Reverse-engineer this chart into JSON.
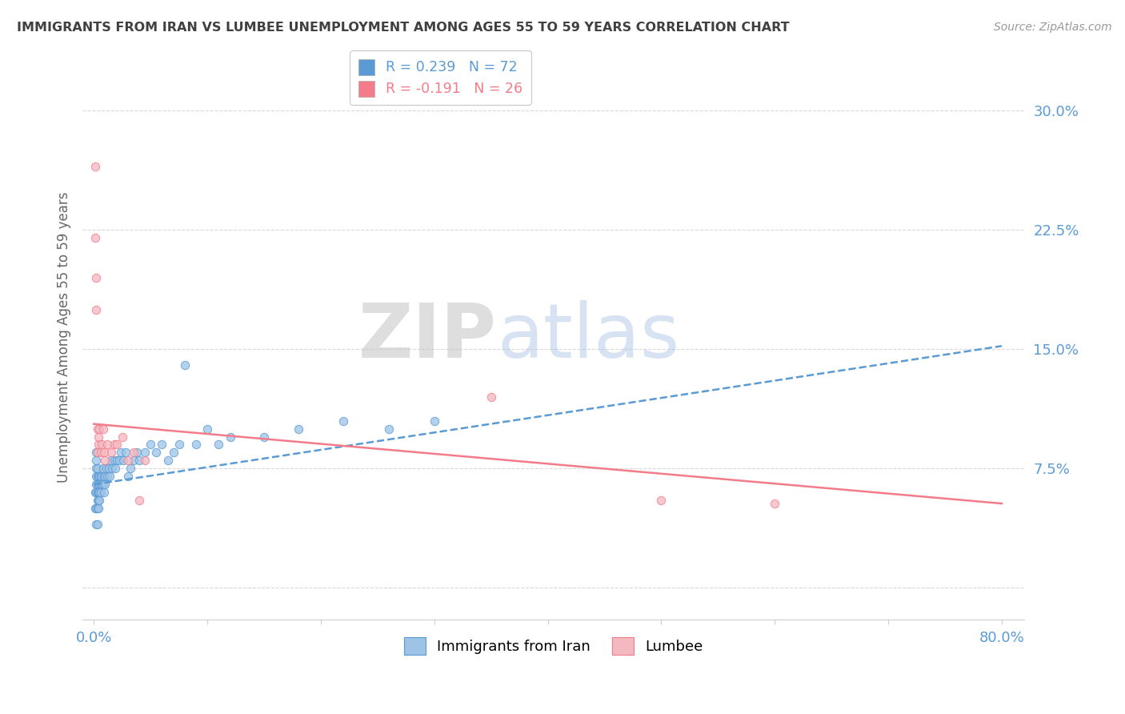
{
  "title": "IMMIGRANTS FROM IRAN VS LUMBEE UNEMPLOYMENT AMONG AGES 55 TO 59 YEARS CORRELATION CHART",
  "source": "Source: ZipAtlas.com",
  "ylabel": "Unemployment Among Ages 55 to 59 years",
  "yticks": [
    0.0,
    0.075,
    0.15,
    0.225,
    0.3
  ],
  "ytick_labels": [
    "",
    "7.5%",
    "15.0%",
    "22.5%",
    "30.0%"
  ],
  "xticks": [
    0.0,
    0.1,
    0.2,
    0.3,
    0.4,
    0.5,
    0.6,
    0.7,
    0.8
  ],
  "xtick_labels": [
    "0.0%",
    "",
    "",
    "",
    "",
    "",
    "",
    "",
    "80.0%"
  ],
  "xlim": [
    -0.01,
    0.82
  ],
  "ylim": [
    -0.02,
    0.335
  ],
  "legend_entries": [
    {
      "label": "R = 0.239   N = 72",
      "color": "#5b9bd5"
    },
    {
      "label": "R = -0.191   N = 26",
      "color": "#f47c8a"
    }
  ],
  "series_iran": {
    "color": "#9dc3e6",
    "edge_color": "#5b9bd5",
    "alpha": 0.75,
    "size": 55,
    "x": [
      0.001,
      0.001,
      0.002,
      0.002,
      0.002,
      0.002,
      0.002,
      0.002,
      0.002,
      0.002,
      0.003,
      0.003,
      0.003,
      0.003,
      0.003,
      0.003,
      0.003,
      0.004,
      0.004,
      0.004,
      0.004,
      0.004,
      0.005,
      0.005,
      0.005,
      0.005,
      0.006,
      0.006,
      0.006,
      0.007,
      0.007,
      0.008,
      0.008,
      0.009,
      0.009,
      0.01,
      0.01,
      0.011,
      0.012,
      0.013,
      0.014,
      0.015,
      0.016,
      0.018,
      0.019,
      0.02,
      0.022,
      0.024,
      0.026,
      0.028,
      0.03,
      0.032,
      0.035,
      0.038,
      0.04,
      0.045,
      0.05,
      0.055,
      0.06,
      0.065,
      0.07,
      0.075,
      0.08,
      0.09,
      0.1,
      0.11,
      0.12,
      0.15,
      0.18,
      0.22,
      0.26,
      0.3
    ],
    "y": [
      0.05,
      0.06,
      0.04,
      0.05,
      0.06,
      0.065,
      0.07,
      0.075,
      0.08,
      0.085,
      0.04,
      0.05,
      0.055,
      0.06,
      0.065,
      0.07,
      0.075,
      0.05,
      0.055,
      0.06,
      0.065,
      0.07,
      0.055,
      0.06,
      0.065,
      0.07,
      0.06,
      0.065,
      0.07,
      0.065,
      0.07,
      0.065,
      0.075,
      0.06,
      0.07,
      0.065,
      0.07,
      0.075,
      0.07,
      0.075,
      0.07,
      0.08,
      0.075,
      0.08,
      0.075,
      0.08,
      0.08,
      0.085,
      0.08,
      0.085,
      0.07,
      0.075,
      0.08,
      0.085,
      0.08,
      0.085,
      0.09,
      0.085,
      0.09,
      0.08,
      0.085,
      0.09,
      0.14,
      0.09,
      0.1,
      0.09,
      0.095,
      0.095,
      0.1,
      0.105,
      0.1,
      0.105
    ]
  },
  "series_lumbee": {
    "color": "#f4b8c1",
    "edge_color": "#f47c8a",
    "alpha": 0.75,
    "size": 55,
    "x": [
      0.001,
      0.001,
      0.002,
      0.002,
      0.003,
      0.003,
      0.004,
      0.004,
      0.005,
      0.006,
      0.007,
      0.008,
      0.009,
      0.01,
      0.012,
      0.015,
      0.018,
      0.02,
      0.025,
      0.03,
      0.035,
      0.04,
      0.045,
      0.35,
      0.5,
      0.6
    ],
    "y": [
      0.265,
      0.22,
      0.195,
      0.175,
      0.1,
      0.085,
      0.09,
      0.095,
      0.1,
      0.085,
      0.09,
      0.1,
      0.085,
      0.08,
      0.09,
      0.085,
      0.09,
      0.09,
      0.095,
      0.08,
      0.085,
      0.055,
      0.08,
      0.12,
      0.055,
      0.053
    ]
  },
  "trendline_iran": {
    "color": "#5b9bd5",
    "x_start": 0.0,
    "x_end": 0.8,
    "y_start": 0.065,
    "y_end": 0.152,
    "style": "--",
    "linewidth": 1.8
  },
  "trendline_lumbee": {
    "color": "#f47c8a",
    "x_start": 0.0,
    "x_end": 0.8,
    "y_start": 0.103,
    "y_end": 0.053,
    "style": "-",
    "linewidth": 1.8
  },
  "watermark_zip": "ZIP",
  "watermark_atlas": "atlas",
  "background_color": "#ffffff",
  "grid_color": "#d9d9d9",
  "title_color": "#404040",
  "tick_color": "#5b9bd5"
}
